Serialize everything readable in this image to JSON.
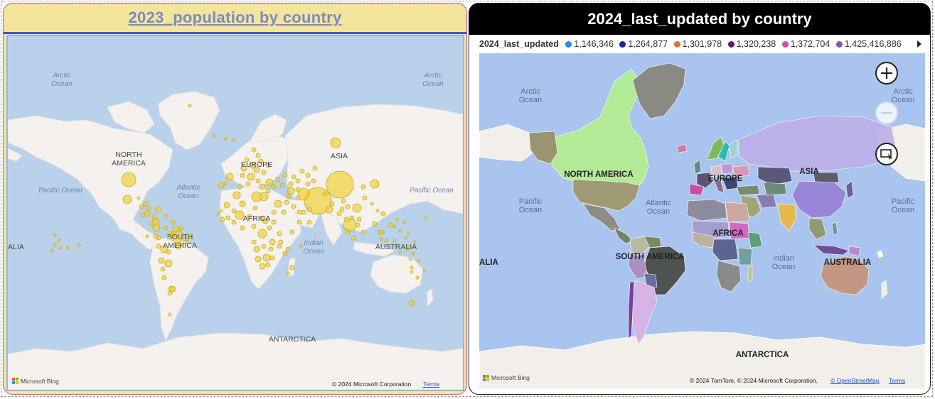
{
  "left_visual": {
    "title": "2023_population by country",
    "labels": {
      "arctic_left": [
        "Arctic",
        "Ocean"
      ],
      "arctic_right": [
        "Arctic",
        "Ocean"
      ],
      "north_america": [
        "NORTH",
        "AMERICA"
      ],
      "atlantic": [
        "Atlantic",
        "Ocean"
      ],
      "pacific_left": "Pacific Ocean",
      "pacific_right": "Pacific Ocean",
      "europe": "EUROPE",
      "asia": "ASIA",
      "africa": "AFRICA",
      "south_america": [
        "SOUTH",
        "AMERICA"
      ],
      "indian": [
        "Indian",
        "Ocean"
      ],
      "australia": "AUSTRALIA",
      "australia_clip": "ALIA",
      "antarctica": "ANTARCTICA"
    },
    "bubble_color": "#f0d23a",
    "footer": {
      "bing": "Microsoft Bing",
      "copyright": "© 2024 Microsoft Corporation",
      "terms": "Terms"
    }
  },
  "right_visual": {
    "title": "2024_last_updated by country",
    "legend": {
      "title": "2024_last_updated",
      "items": [
        {
          "label": "1,146,346",
          "color": "#2a8cf0"
        },
        {
          "label": "1,264,877",
          "color": "#12289a"
        },
        {
          "label": "1,301,978",
          "color": "#e8713a"
        },
        {
          "label": "1,320,238",
          "color": "#6a157a"
        },
        {
          "label": "1,372,704",
          "color": "#e046a6"
        },
        {
          "label": "1,425,416,886",
          "color": "#7b57c8"
        }
      ]
    },
    "labels": {
      "arctic_left": [
        "Arctic",
        "Ocean"
      ],
      "arctic_right": [
        "Arctic",
        "Ocean"
      ],
      "north_america": "NORTH AMERICA",
      "atlantic": [
        "Atlantic",
        "Ocean"
      ],
      "pacific_left": [
        "Pacific",
        "Ocean"
      ],
      "pacific_right": [
        "Pacific",
        "Ocean"
      ],
      "europe": "EUROPE",
      "asia": "ASIA",
      "africa": "AFRICA",
      "south_america": "SOUTH AMERICA",
      "indian": [
        "Indian",
        "Ocean"
      ],
      "australia": "AUSTRALIA",
      "australia_clip": "ALIA",
      "antarctica": "ANTARCTICA"
    },
    "controls": {
      "zoom_in": "+",
      "zoom_out": "−"
    },
    "footer": {
      "bing": "Microsoft Bing",
      "copyright": "© 2024 TomTom, © 2024 Microsoft Corporation,",
      "osm": "© OpenStreetMap",
      "terms": "Terms"
    }
  }
}
